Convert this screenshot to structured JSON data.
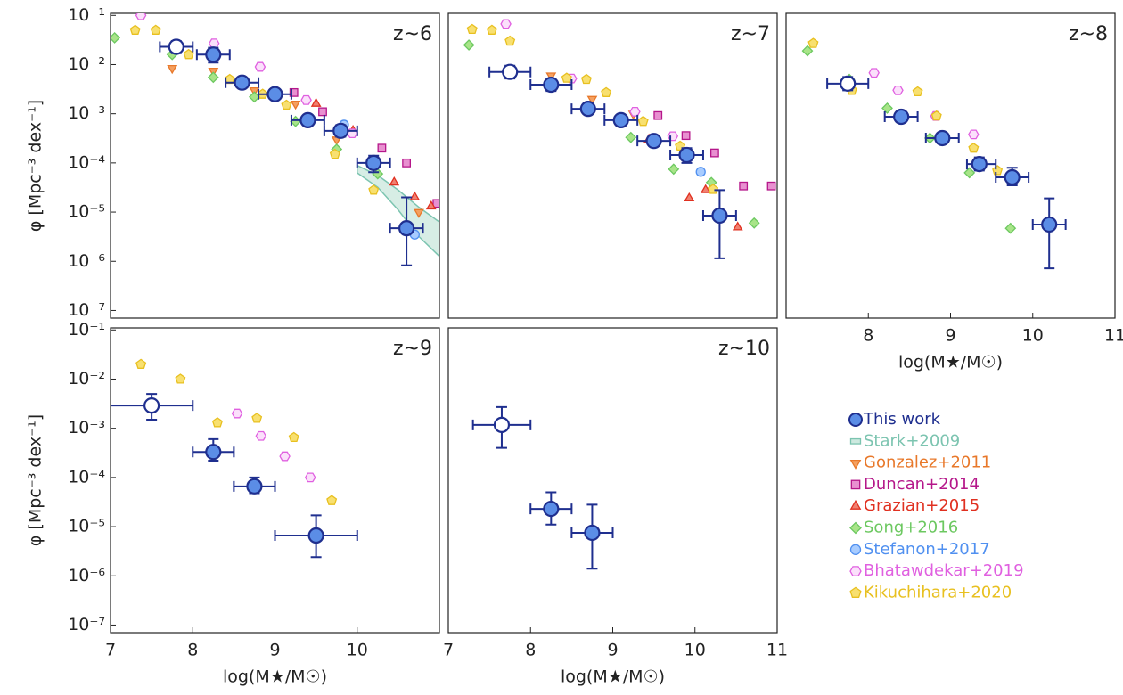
{
  "chart_data": {
    "type": "scatter",
    "xlim": [
      7,
      11
    ],
    "ylim": [
      7e-08,
      0.11
    ],
    "log_y": true,
    "panels": [
      {
        "title": "z~6",
        "xticks": [],
        "yticks": [
          {
            "value": 0.1,
            "label": "10⁻¹"
          },
          {
            "value": 0.01,
            "label": "10⁻²"
          },
          {
            "value": 0.001,
            "label": "10⁻³"
          },
          {
            "value": 0.0001,
            "label": "10⁻⁴"
          },
          {
            "value": 1e-05,
            "label": "10⁻⁵"
          },
          {
            "value": 1e-06,
            "label": "10⁻⁶"
          },
          {
            "value": 1e-07,
            "label": "10⁻⁷"
          }
        ],
        "ylabel": "φ [Mpc⁻³ dex⁻¹]"
      },
      {
        "title": "z~7",
        "xticks": [],
        "yticks": []
      },
      {
        "title": "z~8",
        "xticks": [
          8,
          9,
          10,
          11
        ],
        "yticks": [],
        "xlabel": "log(M★/M☉)"
      },
      {
        "title": "z~9",
        "xticks": [
          7,
          8,
          9,
          10
        ],
        "yticks": [
          {
            "value": 0.1,
            "label": "10⁻¹"
          },
          {
            "value": 0.01,
            "label": "10⁻²"
          },
          {
            "value": 0.001,
            "label": "10⁻³"
          },
          {
            "value": 0.0001,
            "label": "10⁻⁴"
          },
          {
            "value": 1e-05,
            "label": "10⁻⁵"
          },
          {
            "value": 1e-06,
            "label": "10⁻⁶"
          },
          {
            "value": 1e-07,
            "label": "10⁻⁷"
          }
        ],
        "ylabel": "φ [Mpc⁻³ dex⁻¹]",
        "xlabel": "log(M★/M☉)"
      },
      {
        "title": "z~10",
        "xticks": [
          7,
          8,
          9,
          10,
          11
        ],
        "yticks": [],
        "xlabel": "log(M★/M☉)"
      }
    ],
    "series": [
      {
        "name": "This work",
        "color": "#1f2f8f",
        "fill": "#5b8de6",
        "marker": "circle",
        "data": [
          {
            "x": [
              7.8,
              8.25,
              8.6,
              9.0,
              9.4,
              9.8,
              10.2,
              10.6
            ],
            "values": [
              0.023,
              0.016,
              0.0043,
              0.0025,
              0.00074,
              0.00045,
              0.0001,
              4.7e-06
            ],
            "open": [
              true,
              false,
              false,
              false,
              false,
              false,
              false,
              false
            ],
            "x_lower": [
              7.6,
              8.05,
              8.4,
              8.8,
              9.2,
              9.6,
              10.0,
              10.4
            ],
            "x_upper": [
              8.0,
              8.45,
              8.8,
              9.2,
              9.6,
              10.0,
              10.4,
              10.8
            ],
            "y_lower": [
              0.017,
              0.011,
              0.0034,
              0.002,
              0.0006,
              0.00034,
              6.5e-05,
              8.3e-07
            ],
            "y_upper": [
              0.03,
              0.022,
              0.0053,
              0.003,
              0.0009,
              0.00059,
              0.00014,
              2e-05
            ]
          },
          {
            "x": [
              7.75,
              8.25,
              8.7,
              9.1,
              9.5,
              9.9,
              10.3
            ],
            "values": [
              0.0071,
              0.0039,
              0.00126,
              0.00074,
              0.00028,
              0.000145,
              8.5e-06
            ],
            "open": [
              true,
              false,
              false,
              false,
              false,
              false,
              false
            ],
            "x_lower": [
              7.5,
              8.0,
              8.5,
              8.9,
              9.3,
              9.7,
              10.1
            ],
            "x_upper": [
              8.0,
              8.5,
              8.9,
              9.3,
              9.7,
              10.1,
              10.5
            ],
            "y_lower": [
              0.0052,
              0.0029,
              0.001,
              0.0006,
              0.00022,
              0.0001,
              1.15e-06
            ],
            "y_upper": [
              0.0095,
              0.005,
              0.0016,
              0.0009,
              0.00036,
              0.0002,
              2.8e-05
            ]
          },
          {
            "x": [
              7.75,
              8.4,
              8.9,
              9.35,
              9.75,
              10.2
            ],
            "values": [
              0.0041,
              0.00087,
              0.00032,
              9.5e-05,
              5.1e-05,
              5.6e-06
            ],
            "open": [
              true,
              false,
              false,
              false,
              false,
              false
            ],
            "x_lower": [
              7.5,
              8.2,
              8.7,
              9.2,
              9.55,
              10.0
            ],
            "x_upper": [
              8.0,
              8.6,
              9.1,
              9.55,
              9.95,
              10.4
            ],
            "y_lower": [
              0.003,
              0.0007,
              0.00025,
              7e-05,
              3.5e-05,
              7.2e-07
            ],
            "y_upper": [
              0.0056,
              0.0011,
              0.0004,
              0.00013,
              8e-05,
              1.9e-05
            ]
          },
          {
            "x": [
              7.5,
              8.25,
              8.75,
              9.5
            ],
            "values": [
              0.0029,
              0.00033,
              6.6e-05,
              6.6e-06
            ],
            "open": [
              true,
              false,
              false,
              false
            ],
            "x_lower": [
              7.0,
              8.0,
              8.5,
              9.0
            ],
            "x_upper": [
              8.0,
              8.5,
              9.0,
              10.0
            ],
            "y_lower": [
              0.0015,
              0.00022,
              4.8e-05,
              2.4e-06
            ],
            "y_upper": [
              0.005,
              0.0006,
              0.0001,
              1.7e-05
            ]
          },
          {
            "x": [
              7.65,
              8.25,
              8.75
            ],
            "values": [
              0.00117,
              2.3e-05,
              7.5e-06
            ],
            "open": [
              true,
              false,
              false
            ],
            "x_lower": [
              7.3,
              8.0,
              8.5
            ],
            "x_upper": [
              8.0,
              8.5,
              9.0
            ],
            "y_lower": [
              0.0004,
              1.1e-05,
              1.4e-06
            ],
            "y_upper": [
              0.0027,
              5e-05,
              2.8e-05
            ]
          }
        ]
      },
      {
        "name": "Stark+2009",
        "color": "#7cc4b0",
        "fill": "#cde9df",
        "marker": "rect",
        "data": [
          {
            "x": [
              10.0,
              10.25,
              10.5,
              10.75,
              11.0
            ],
            "lower": [
              6.3e-05,
              3.2e-05,
              1.1e-05,
              3.2e-06,
              1.26e-06
            ],
            "upper": [
              8.9e-05,
              5.6e-05,
              2.8e-05,
              1.26e-05,
              6.3e-06
            ]
          },
          {
            "x": [],
            "lower": [],
            "upper": []
          },
          {
            "x": [],
            "lower": [],
            "upper": []
          },
          {
            "x": [],
            "lower": [],
            "upper": []
          },
          {
            "x": [],
            "lower": [],
            "upper": []
          }
        ]
      },
      {
        "name": "Gonzalez+2011",
        "color": "#e8782a",
        "fill": "#f4a060",
        "marker": "triangle-down",
        "data": [
          {
            "x": [
              7.75,
              8.25,
              8.75,
              9.25,
              9.75,
              10.75
            ],
            "values": [
              0.0085,
              0.0075,
              0.003,
              0.0016,
              0.0003,
              1e-05
            ]
          },
          {
            "x": [
              8.25,
              8.75,
              9.25
            ],
            "values": [
              0.006,
              0.002,
              0.001
            ]
          },
          {
            "x": [],
            "values": []
          },
          {
            "x": [],
            "values": []
          },
          {
            "x": [],
            "values": []
          }
        ]
      },
      {
        "name": "Duncan+2014",
        "color": "#b5178a",
        "fill": "#e890d0",
        "marker": "square",
        "data": [
          {
            "x": [
              9.23,
              9.58,
              10.3,
              10.6,
              10.97
            ],
            "values": [
              0.0027,
              0.0011,
              0.0002,
              0.0001,
              1.5e-05
            ]
          },
          {
            "x": [
              9.55,
              9.89,
              10.24,
              10.59,
              10.93
            ],
            "values": [
              0.00092,
              0.00036,
              0.00016,
              3.4e-05,
              3.4e-05
            ]
          },
          {
            "x": [],
            "values": []
          },
          {
            "x": [],
            "values": []
          },
          {
            "x": [],
            "values": []
          }
        ]
      },
      {
        "name": "Grazian+2015",
        "color": "#e03020",
        "fill": "#f08070",
        "marker": "triangle-up",
        "data": [
          {
            "x": [
              9.5,
              9.95,
              10.45,
              10.7,
              10.9
            ],
            "values": [
              0.0016,
              0.00045,
              4e-05,
              2e-05,
              1.3e-05
            ]
          },
          {
            "x": [
              9.44,
              9.93,
              10.13,
              10.52
            ],
            "values": [
              0.0003,
              1.9e-05,
              2.8e-05,
              4.9e-06
            ]
          },
          {
            "x": [],
            "values": []
          },
          {
            "x": [],
            "values": []
          },
          {
            "x": [],
            "values": []
          }
        ]
      },
      {
        "name": "Song+2016",
        "color": "#6cc860",
        "fill": "#a8e488",
        "marker": "diamond",
        "data": [
          {
            "x": [
              7.05,
              7.75,
              8.25,
              8.75,
              9.25,
              9.75,
              10.25
            ],
            "values": [
              0.035,
              0.016,
              0.0055,
              0.0022,
              0.0007,
              0.00019,
              6e-05
            ]
          },
          {
            "x": [
              7.25,
              9.22,
              9.74,
              10.2,
              10.72
            ],
            "values": [
              0.025,
              0.00033,
              7.5e-05,
              4e-05,
              6e-06
            ]
          },
          {
            "x": [
              7.26,
              7.77,
              8.23,
              8.75,
              9.23,
              9.73
            ],
            "values": [
              0.019,
              0.005,
              0.0013,
              0.00032,
              6.3e-05,
              4.7e-06
            ]
          },
          {
            "x": [],
            "values": []
          },
          {
            "x": [],
            "values": []
          }
        ]
      },
      {
        "name": "Stefanon+2017",
        "color": "#5090f0",
        "fill": "#a8ccff",
        "marker": "circle",
        "data": [
          {
            "x": [
              9.84,
              10.7
            ],
            "values": [
              0.0006,
              3.5e-06
            ]
          },
          {
            "x": [
              10.07
            ],
            "values": [
              6.6e-05
            ]
          },
          {
            "x": [],
            "values": []
          },
          {
            "x": [],
            "values": []
          },
          {
            "x": [],
            "values": []
          }
        ]
      },
      {
        "name": "Bhatawdekar+2019",
        "color": "#e060e0",
        "fill": "#fbe0fb",
        "marker": "hexagon",
        "data": [
          {
            "x": [
              7.37,
              8.26,
              8.82,
              9.38,
              9.94
            ],
            "values": [
              0.1,
              0.027,
              0.009,
              0.0019,
              0.0004
            ]
          },
          {
            "x": [
              7.7,
              8.5,
              9.27,
              9.73
            ],
            "values": [
              0.067,
              0.0052,
              0.0011,
              0.00035
            ]
          },
          {
            "x": [
              8.07,
              8.36,
              8.82,
              9.28
            ],
            "values": [
              0.0068,
              0.003,
              0.0009,
              0.00038
            ]
          },
          {
            "x": [
              8.54,
              8.83,
              9.12,
              9.43
            ],
            "values": [
              0.002,
              0.0007,
              0.00027,
              0.0001
            ]
          },
          {
            "x": [],
            "values": []
          }
        ]
      },
      {
        "name": "Kikuchihara+2020",
        "color": "#e8c020",
        "fill": "#f8e070",
        "marker": "pentagon",
        "data": [
          {
            "x": [
              7.3,
              7.55,
              7.95,
              8.45,
              8.85,
              9.14,
              9.73,
              10.2
            ],
            "values": [
              0.05,
              0.05,
              0.016,
              0.005,
              0.0025,
              0.0015,
              0.00015,
              2.8e-05
            ]
          },
          {
            "x": [
              7.29,
              7.53,
              7.75,
              8.44,
              8.68,
              8.92,
              9.37,
              9.82,
              10.22
            ],
            "values": [
              0.052,
              0.05,
              0.03,
              0.0053,
              0.005,
              0.0027,
              0.0007,
              0.00022,
              2.9e-05
            ]
          },
          {
            "x": [
              7.33,
              7.8,
              8.6,
              8.83,
              9.28,
              9.57
            ],
            "values": [
              0.027,
              0.003,
              0.0028,
              0.0009,
              0.0002,
              7e-05
            ]
          },
          {
            "x": [
              7.37,
              7.85,
              8.3,
              8.78,
              9.23,
              9.69
            ],
            "values": [
              0.02,
              0.01,
              0.0013,
              0.0016,
              0.00065,
              3.4e-05
            ]
          },
          {
            "x": [],
            "values": []
          }
        ]
      }
    ]
  }
}
